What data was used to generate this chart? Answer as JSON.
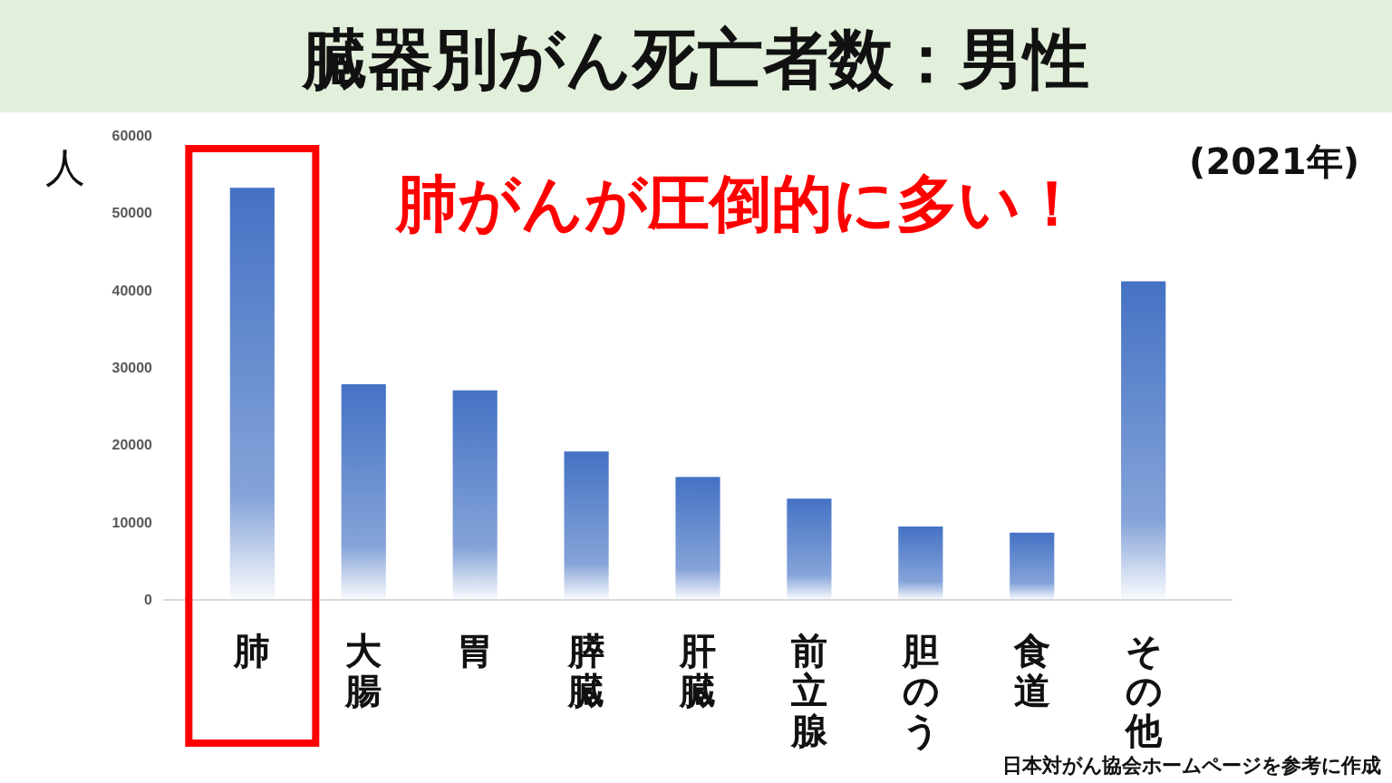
{
  "chart_data": {
    "type": "bar",
    "title": "臓器別がん死亡者数：男性",
    "ylabel": "人",
    "categories": [
      "肺",
      "大腸",
      "胃",
      "膵臓",
      "肝臓",
      "前立腺",
      "胆のう",
      "食道",
      "その他"
    ],
    "values": [
      53300,
      27900,
      27100,
      19200,
      15900,
      13100,
      9500,
      8700,
      41200
    ],
    "color": "#4472c4",
    "ylim": [
      0,
      60000
    ],
    "yticks": [
      0,
      10000,
      20000,
      30000,
      40000,
      50000,
      60000
    ],
    "grid": false,
    "annotations": [
      "肺がんが圧倒的に多い！",
      "(2021年)",
      "日本対がん協会ホームページを参考に作成"
    ]
  }
}
